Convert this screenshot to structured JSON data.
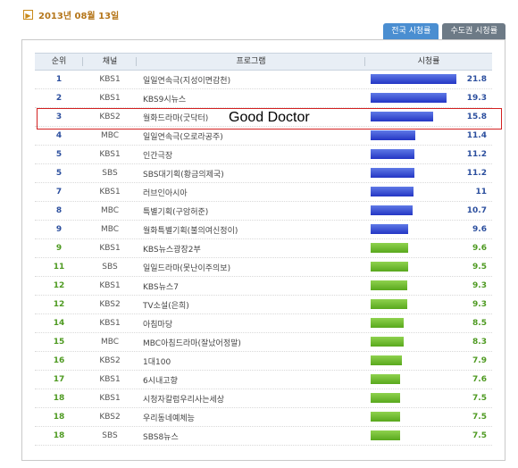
{
  "header": {
    "date": "2013년 08월 13일",
    "date_icon": "arrow-right-icon"
  },
  "tabs": [
    {
      "label": "전국 시청률",
      "active": true
    },
    {
      "label": "수도권 시청률",
      "active": false
    }
  ],
  "table": {
    "columns": [
      "순위",
      "채널",
      "프로그램",
      "시청률"
    ],
    "max_value": 21.8,
    "rows": [
      {
        "rank": "1",
        "channel": "KBS1",
        "program": "일일연속극(지성이면감천)",
        "rating": 21.8,
        "rating_text": "21.8",
        "color": "blue"
      },
      {
        "rank": "2",
        "channel": "KBS1",
        "program": "KBS9시뉴스",
        "rating": 19.3,
        "rating_text": "19.3",
        "color": "blue"
      },
      {
        "rank": "3",
        "channel": "KBS2",
        "program": "월화드라마(굿닥터)",
        "rating": 15.8,
        "rating_text": "15.8",
        "color": "blue"
      },
      {
        "rank": "4",
        "channel": "MBC",
        "program": "일일연속극(오로라공주)",
        "rating": 11.4,
        "rating_text": "11.4",
        "color": "blue"
      },
      {
        "rank": "5",
        "channel": "KBS1",
        "program": "인간극장",
        "rating": 11.2,
        "rating_text": "11.2",
        "color": "blue"
      },
      {
        "rank": "5",
        "channel": "SBS",
        "program": "SBS대기획(황금의제국)",
        "rating": 11.2,
        "rating_text": "11.2",
        "color": "blue"
      },
      {
        "rank": "7",
        "channel": "KBS1",
        "program": "러브인아시아",
        "rating": 11,
        "rating_text": "11",
        "color": "blue"
      },
      {
        "rank": "8",
        "channel": "MBC",
        "program": "특별기획(구암허준)",
        "rating": 10.7,
        "rating_text": "10.7",
        "color": "blue"
      },
      {
        "rank": "9",
        "channel": "MBC",
        "program": "월화특별기획(불의여신정이)",
        "rating": 9.6,
        "rating_text": "9.6",
        "color": "blue"
      },
      {
        "rank": "9",
        "channel": "KBS1",
        "program": "KBS뉴스광장2부",
        "rating": 9.6,
        "rating_text": "9.6",
        "color": "green"
      },
      {
        "rank": "11",
        "channel": "SBS",
        "program": "일일드라마(못난이주의보)",
        "rating": 9.5,
        "rating_text": "9.5",
        "color": "green"
      },
      {
        "rank": "12",
        "channel": "KBS1",
        "program": "KBS뉴스7",
        "rating": 9.3,
        "rating_text": "9.3",
        "color": "green"
      },
      {
        "rank": "12",
        "channel": "KBS2",
        "program": "TV소설(은희)",
        "rating": 9.3,
        "rating_text": "9.3",
        "color": "green"
      },
      {
        "rank": "14",
        "channel": "KBS1",
        "program": "아침마당",
        "rating": 8.5,
        "rating_text": "8.5",
        "color": "green"
      },
      {
        "rank": "15",
        "channel": "MBC",
        "program": "MBC아침드라마(잘났어정말)",
        "rating": 8.3,
        "rating_text": "8.3",
        "color": "green"
      },
      {
        "rank": "16",
        "channel": "KBS2",
        "program": "1대100",
        "rating": 7.9,
        "rating_text": "7.9",
        "color": "green"
      },
      {
        "rank": "17",
        "channel": "KBS1",
        "program": "6시내고향",
        "rating": 7.6,
        "rating_text": "7.6",
        "color": "green"
      },
      {
        "rank": "18",
        "channel": "KBS1",
        "program": "시청자칼럼우리사는세상",
        "rating": 7.5,
        "rating_text": "7.5",
        "color": "green"
      },
      {
        "rank": "18",
        "channel": "KBS2",
        "program": "우리동네예체능",
        "rating": 7.5,
        "rating_text": "7.5",
        "color": "green"
      },
      {
        "rank": "18",
        "channel": "SBS",
        "program": "SBS8뉴스",
        "rating": 7.5,
        "rating_text": "7.5",
        "color": "green"
      }
    ]
  },
  "annotation": {
    "text": "Good Doctor",
    "highlight_color": "#d32020"
  }
}
